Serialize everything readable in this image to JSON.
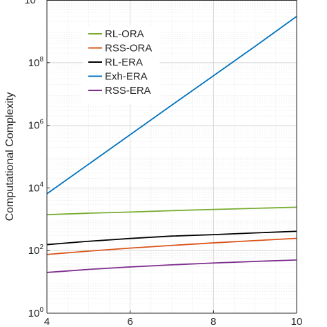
{
  "chart_data": {
    "type": "line",
    "title": "",
    "xlabel": "",
    "ylabel": "Computational Complexity",
    "xlim": [
      4,
      10
    ],
    "ylim": [
      1,
      10000000000
    ],
    "yscale": "log",
    "grid": true,
    "minor_grid": true,
    "legend_position": "top-left",
    "x_ticks": [
      {
        "value": 4,
        "label": "4"
      },
      {
        "value": 6,
        "label": "6"
      },
      {
        "value": 8,
        "label": "8"
      },
      {
        "value": 10,
        "label": "10"
      }
    ],
    "y_ticks": [
      {
        "value": 1,
        "base": "10",
        "exp": "0"
      },
      {
        "value": 100,
        "base": "10",
        "exp": "2"
      },
      {
        "value": 10000,
        "base": "10",
        "exp": "4"
      },
      {
        "value": 1000000,
        "base": "10",
        "exp": "6"
      },
      {
        "value": 100000000,
        "base": "10",
        "exp": "8"
      },
      {
        "value": 10000000000,
        "base": "10",
        "exp": "10"
      }
    ],
    "x": [
      4,
      5,
      6,
      7,
      8,
      9,
      10
    ],
    "series": [
      {
        "name": "RL-ORA",
        "color": "#77ac30",
        "values": [
          1400,
          1560,
          1700,
          1880,
          2050,
          2230,
          2420
        ]
      },
      {
        "name": "RSS-ORA",
        "color": "#d95319",
        "values": [
          75,
          96,
          120,
          146,
          176,
          208,
          245
        ]
      },
      {
        "name": "RL-ERA",
        "color": "#000000",
        "values": [
          155,
          198,
          243,
          290,
          322,
          366,
          412
        ]
      },
      {
        "name": "Exh-ERA",
        "color": "#0072bd",
        "values": [
          6500,
          57000,
          500000,
          4400000,
          38000000,
          330000000,
          3000000000
        ]
      },
      {
        "name": "RSS-ERA",
        "color": "#7e2f8e",
        "values": [
          20,
          25,
          30,
          35,
          40,
          45,
          50
        ]
      }
    ]
  }
}
